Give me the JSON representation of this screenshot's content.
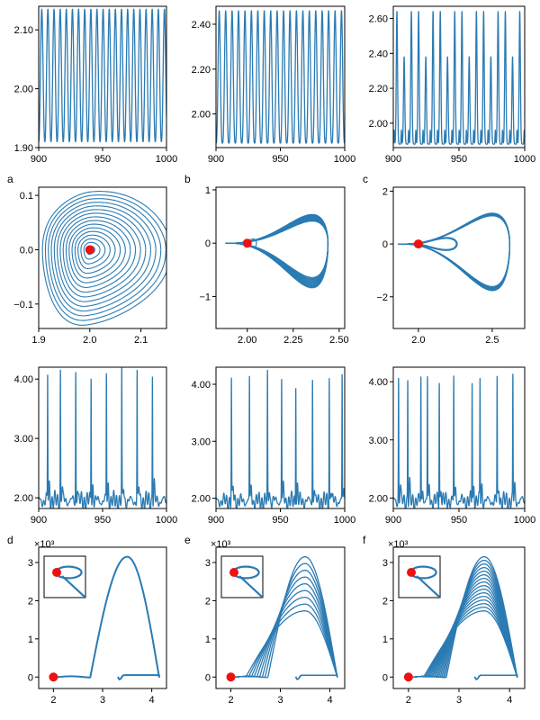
{
  "colors": {
    "series": "#2b7bb3",
    "marker": "#ee1111",
    "axis": "#000000"
  },
  "panel_labels": {
    "a": "a",
    "b": "b",
    "c": "c",
    "d": "d",
    "e": "e",
    "f": "f"
  },
  "multiplier": "×10³",
  "chart_data": [
    {
      "id": "a-time",
      "type": "line",
      "style": "osc",
      "xlim": [
        900,
        1000
      ],
      "ylim": [
        1.9,
        2.14
      ],
      "xticks": [
        900,
        950,
        1000
      ],
      "xtick_labels": [
        "900",
        "950",
        "1000"
      ],
      "yticks": [
        1.9,
        2.0,
        2.1
      ],
      "ytick_labels": [
        "1.90",
        "2.00",
        "2.10"
      ],
      "series": [
        {
          "period": 4.8,
          "min": 1.91,
          "max": 2.135
        }
      ]
    },
    {
      "id": "b-time",
      "type": "line",
      "style": "osc",
      "xlim": [
        900,
        1000
      ],
      "ylim": [
        1.85,
        2.48
      ],
      "xticks": [
        900,
        950,
        1000
      ],
      "xtick_labels": [
        "900",
        "950",
        "1000"
      ],
      "yticks": [
        2.0,
        2.2,
        2.4
      ],
      "ytick_labels": [
        "2.00",
        "2.20",
        "2.40"
      ],
      "series": [
        {
          "period": 5.0,
          "min": 1.87,
          "max": 2.46
        }
      ]
    },
    {
      "id": "c-time",
      "type": "line",
      "style": "osc2",
      "xlim": [
        900,
        1000
      ],
      "ylim": [
        1.86,
        2.67
      ],
      "xticks": [
        900,
        950,
        1000
      ],
      "xtick_labels": [
        "900",
        "950",
        "1000"
      ],
      "yticks": [
        2.0,
        2.2,
        2.4,
        2.6
      ],
      "ytick_labels": [
        "2.00",
        "2.20",
        "2.40",
        "2.60"
      ],
      "series": [
        {
          "period": 5.5,
          "min": 1.88,
          "max": 2.64,
          "alt_max": 2.38
        }
      ]
    },
    {
      "id": "a-phase",
      "type": "line",
      "style": "spiral",
      "xlim": [
        1.9,
        2.15
      ],
      "ylim": [
        -0.145,
        0.115
      ],
      "xticks": [
        1.9,
        2.0,
        2.1
      ],
      "xtick_labels": [
        "1.9",
        "2.0",
        "2.1"
      ],
      "yticks": [
        -0.1,
        0.0,
        0.1
      ],
      "ytick_labels": [
        "−0.1",
        "0.0",
        "0.1"
      ],
      "equilibrium": [
        2.0,
        0.0
      ]
    },
    {
      "id": "b-phase",
      "type": "line",
      "style": "limit",
      "xlim": [
        1.83,
        2.53
      ],
      "ylim": [
        -1.6,
        1.05
      ],
      "xticks": [
        2.0,
        2.25,
        2.5
      ],
      "xtick_labels": [
        "2.00",
        "2.25",
        "2.50"
      ],
      "yticks": [
        -1,
        0,
        1
      ],
      "ytick_labels": [
        "−1",
        "0",
        "1"
      ],
      "equilibrium": [
        2.0,
        0.0
      ]
    },
    {
      "id": "c-phase",
      "type": "line",
      "style": "limit2",
      "xlim": [
        1.83,
        2.72
      ],
      "ylim": [
        -3.2,
        2.15
      ],
      "xticks": [
        2.0,
        2.5
      ],
      "xtick_labels": [
        "2.0",
        "2.5"
      ],
      "yticks": [
        -2,
        0,
        2
      ],
      "ytick_labels": [
        "−2",
        "0",
        "2"
      ],
      "equilibrium": [
        2.0,
        0.0
      ]
    },
    {
      "id": "d-time",
      "type": "line",
      "style": "burst",
      "xlim": [
        900,
        1000
      ],
      "ylim": [
        1.82,
        4.2
      ],
      "xticks": [
        900,
        950,
        1000
      ],
      "xtick_labels": [
        "900",
        "950",
        "1000"
      ],
      "yticks": [
        2.0,
        3.0,
        4.0
      ],
      "ytick_labels": [
        "2.00",
        "3.00",
        "4.00"
      ],
      "series": [
        {
          "spikes": [
            907,
            917,
            929,
            941,
            953,
            965,
            977,
            989
          ],
          "peak": 4.15
        }
      ]
    },
    {
      "id": "e-time",
      "type": "line",
      "style": "burst",
      "xlim": [
        900,
        1000
      ],
      "ylim": [
        1.82,
        4.3
      ],
      "xticks": [
        900,
        950,
        1000
      ],
      "xtick_labels": [
        "900",
        "950",
        "1000"
      ],
      "yticks": [
        2.0,
        3.0,
        4.0
      ],
      "ytick_labels": [
        "2.00",
        "3.00",
        "4.00"
      ],
      "series": [
        {
          "spikes": [
            912,
            926,
            940,
            951,
            962,
            975,
            988,
            998
          ],
          "peak": 4.15
        }
      ]
    },
    {
      "id": "f-time",
      "type": "line",
      "style": "burst",
      "xlim": [
        900,
        1000
      ],
      "ylim": [
        1.82,
        4.25
      ],
      "xticks": [
        900,
        950,
        1000
      ],
      "xtick_labels": [
        "900",
        "950",
        "1000"
      ],
      "yticks": [
        2.0,
        3.0,
        4.0
      ],
      "ytick_labels": [
        "2.00",
        "3.00",
        "4.00"
      ],
      "series": [
        {
          "spikes": [
            904,
            911,
            921,
            926,
            935,
            946,
            960,
            966,
            979,
            991
          ],
          "peak": 4.1
        }
      ]
    },
    {
      "id": "d-phase",
      "type": "line",
      "style": "bigloop",
      "xlim": [
        1.7,
        4.3
      ],
      "ylim": [
        -0.3,
        3.4
      ],
      "xticks": [
        2,
        3,
        4
      ],
      "xtick_labels": [
        "2",
        "3",
        "4"
      ],
      "yticks": [
        0,
        1,
        2,
        3
      ],
      "ytick_labels": [
        "0",
        "1",
        "2",
        "3"
      ],
      "equilibrium": [
        2.0,
        0.0
      ],
      "loops": 1
    },
    {
      "id": "e-phase",
      "type": "line",
      "style": "bigloop",
      "xlim": [
        1.7,
        4.3
      ],
      "ylim": [
        -0.3,
        3.4
      ],
      "xticks": [
        2,
        3,
        4
      ],
      "xtick_labels": [
        "2",
        "3",
        "4"
      ],
      "yticks": [
        0,
        1,
        2,
        3
      ],
      "ytick_labels": [
        "0",
        "1",
        "2",
        "3"
      ],
      "equilibrium": [
        2.0,
        0.0
      ],
      "loops": 9
    },
    {
      "id": "f-phase",
      "type": "line",
      "style": "bigloop",
      "xlim": [
        1.7,
        4.3
      ],
      "ylim": [
        -0.3,
        3.4
      ],
      "xticks": [
        2,
        3,
        4
      ],
      "xtick_labels": [
        "2",
        "3",
        "4"
      ],
      "yticks": [
        0,
        1,
        2,
        3
      ],
      "ytick_labels": [
        "0",
        "1",
        "2",
        "3"
      ],
      "equilibrium": [
        2.0,
        0.0
      ],
      "loops": 16
    }
  ]
}
